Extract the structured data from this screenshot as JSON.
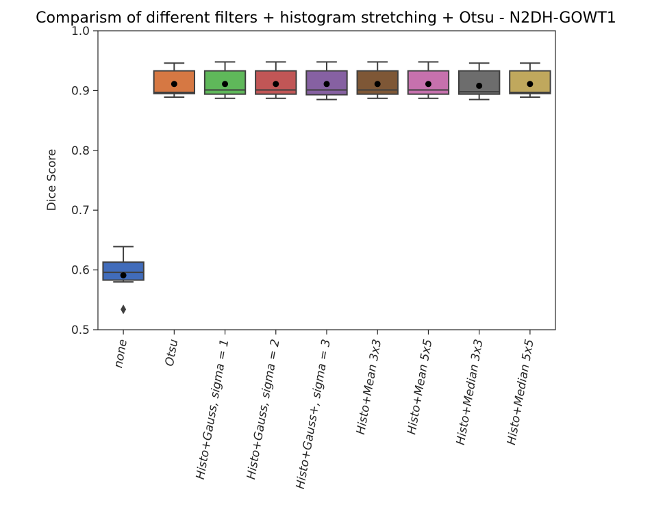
{
  "chart_data": {
    "type": "box",
    "title": "Comparism of different filters + histogram stretching + Otsu - N2DH-GOWT1",
    "xlabel": "",
    "ylabel": "Dice Score",
    "ylim": [
      0.5,
      1.0
    ],
    "yticks": [
      "0.5",
      "0.6",
      "0.7",
      "0.8",
      "0.9",
      "1.0"
    ],
    "grid": false,
    "categories": [
      "none",
      "Otsu",
      "Histo+Gauss, sigma = 1",
      "Histo+Gauss, sigma = 2",
      "Histo+Gauss+, sigma = 3",
      "Histo+Mean 3x3",
      "Histo+Mean 5x5",
      "Histo+Median 3x3",
      "Histo+Median 5x5"
    ],
    "series": [
      {
        "whislo": 0.58,
        "q1": 0.583,
        "med": 0.596,
        "q3": 0.613,
        "whishi": 0.639,
        "mean": 0.591,
        "fliers": [
          0.534
        ],
        "color": "#4878d0"
      },
      {
        "whislo": 0.889,
        "q1": 0.895,
        "med": 0.897,
        "q3": 0.933,
        "whishi": 0.946,
        "mean": 0.911,
        "fliers": [],
        "color": "#ee854a"
      },
      {
        "whislo": 0.887,
        "q1": 0.894,
        "med": 0.901,
        "q3": 0.933,
        "whishi": 0.948,
        "mean": 0.911,
        "fliers": [],
        "color": "#6acc64"
      },
      {
        "whislo": 0.887,
        "q1": 0.894,
        "med": 0.901,
        "q3": 0.933,
        "whishi": 0.948,
        "mean": 0.911,
        "fliers": [],
        "color": "#d65f5f"
      },
      {
        "whislo": 0.885,
        "q1": 0.893,
        "med": 0.901,
        "q3": 0.933,
        "whishi": 0.948,
        "mean": 0.911,
        "fliers": [],
        "color": "#956cb4"
      },
      {
        "whislo": 0.887,
        "q1": 0.894,
        "med": 0.901,
        "q3": 0.933,
        "whishi": 0.948,
        "mean": 0.911,
        "fliers": [],
        "color": "#8c613c"
      },
      {
        "whislo": 0.887,
        "q1": 0.894,
        "med": 0.901,
        "q3": 0.933,
        "whishi": 0.948,
        "mean": 0.911,
        "fliers": [],
        "color": "#dc7ec0"
      },
      {
        "whislo": 0.885,
        "q1": 0.894,
        "med": 0.898,
        "q3": 0.933,
        "whishi": 0.946,
        "mean": 0.908,
        "fliers": [],
        "color": "#797979"
      },
      {
        "whislo": 0.889,
        "q1": 0.895,
        "med": 0.897,
        "q3": 0.933,
        "whishi": 0.946,
        "mean": 0.911,
        "fliers": [],
        "color": "#d5bb67"
      }
    ]
  }
}
